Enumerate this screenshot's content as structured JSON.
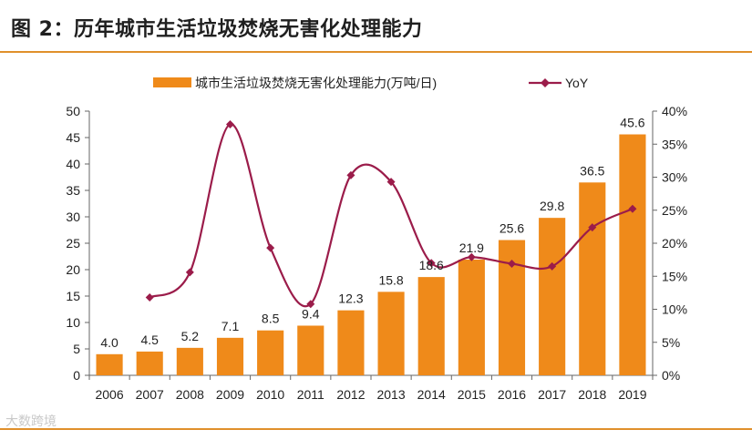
{
  "figure_title": "图 2：历年城市生活垃圾焚烧无害化处理能力",
  "watermark": "大数跨境",
  "colors": {
    "bar": "#ef8a1a",
    "line": "#9b1c4a",
    "rule": "#e0902b"
  },
  "chart_data": {
    "type": "bar",
    "categories": [
      "2006",
      "2007",
      "2008",
      "2009",
      "2010",
      "2011",
      "2012",
      "2013",
      "2014",
      "2015",
      "2016",
      "2017",
      "2018",
      "2019"
    ],
    "series": [
      {
        "name": "城市生活垃圾焚烧无害化处理能力(万吨/日)",
        "type": "bar",
        "axis": "left",
        "values": [
          4.0,
          4.5,
          5.2,
          7.1,
          8.5,
          9.4,
          12.3,
          15.8,
          18.6,
          21.9,
          25.6,
          29.8,
          36.5,
          45.6
        ],
        "labels": [
          "4.0",
          "4.5",
          "5.2",
          "7.1",
          "8.5",
          "9.4",
          "12.3",
          "15.8",
          "18.6",
          "21.9",
          "25.6",
          "29.8",
          "36.5",
          "45.6"
        ]
      },
      {
        "name": "YoY",
        "type": "line",
        "smooth": true,
        "marker": "diamond",
        "axis": "right",
        "values": [
          null,
          11.8,
          15.6,
          38.0,
          19.3,
          10.8,
          30.3,
          29.3,
          17.0,
          17.9,
          16.9,
          16.5,
          22.4,
          25.2
        ]
      }
    ],
    "y_left": {
      "min": 0,
      "max": 50,
      "ticks": [
        "0",
        "5",
        "10",
        "15",
        "20",
        "25",
        "30",
        "35",
        "40",
        "45",
        "50"
      ]
    },
    "y_right": {
      "min": 0,
      "max": 40,
      "ticks": [
        "0%",
        "5%",
        "10%",
        "15%",
        "20%",
        "25%",
        "30%",
        "35%",
        "40%"
      ]
    },
    "legend_position": "top",
    "grid": false
  }
}
